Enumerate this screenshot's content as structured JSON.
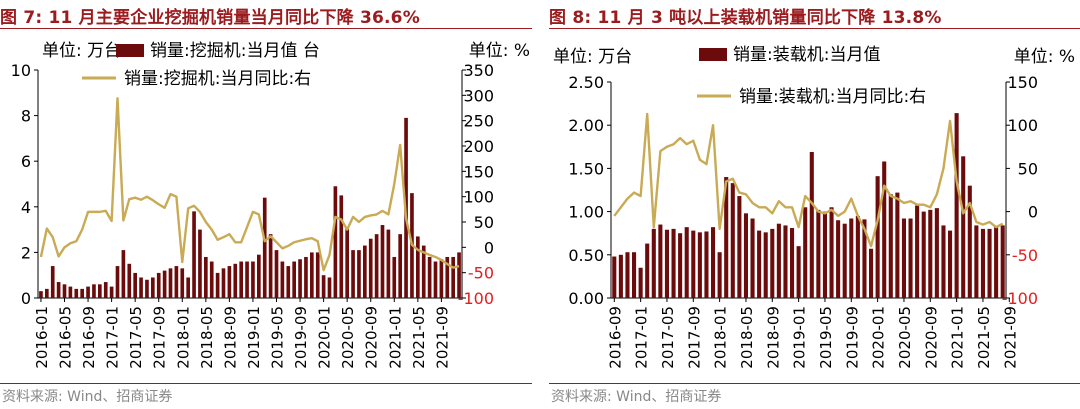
{
  "colors": {
    "title": "#9b1b1e",
    "bar": "#6b0b0b",
    "line": "#c9aa55",
    "right_axis_negative": "#e02020",
    "text": "#000000",
    "source": "#888888"
  },
  "left": {
    "title": "图 7:  11 月主要企业挖掘机销量当月同比下降 36.6%",
    "source": "资料来源:  Wind、招商证券",
    "unit_left": "单位:  万台",
    "unit_right": "单位:  %",
    "legend_bar": "销量:挖掘机:当月值 台",
    "legend_line": "销量:挖掘机:当月同比:右",
    "chart_data": {
      "type": "bar",
      "combo": "bar + line (secondary axis)",
      "x_tick_labels": [
        "2016-01",
        "2016-05",
        "2016-09",
        "2017-01",
        "2017-05",
        "2017-09",
        "2018-01",
        "2018-05",
        "2018-09",
        "2019-01",
        "2019-05",
        "2019-09",
        "2020-01",
        "2020-05",
        "2020-09",
        "2021-01",
        "2021-05",
        "2021-09"
      ],
      "y_left_ticks": [
        "0",
        "2",
        "4",
        "6",
        "8",
        "10"
      ],
      "y_left_range": [
        0,
        10
      ],
      "y_right_ticks": [
        "-100",
        "-50",
        "0",
        "50",
        "100",
        "150",
        "200",
        "250",
        "300",
        "350"
      ],
      "y_right_range": [
        -100,
        350
      ],
      "series": [
        {
          "name": "销量:挖掘机:当月值 台",
          "type": "bar",
          "axis": "left",
          "values": [
            0.3,
            0.4,
            1.4,
            0.7,
            0.6,
            0.5,
            0.4,
            0.4,
            0.5,
            0.6,
            0.6,
            0.7,
            0.5,
            1.4,
            2.1,
            1.5,
            1.1,
            0.9,
            0.8,
            0.9,
            1.1,
            1.2,
            1.3,
            1.4,
            1.3,
            0.9,
            3.8,
            3.0,
            1.8,
            1.6,
            1.1,
            1.3,
            1.4,
            1.5,
            1.6,
            1.6,
            1.6,
            1.9,
            4.4,
            2.8,
            2.1,
            1.6,
            1.4,
            1.6,
            1.7,
            1.8,
            2.0,
            2.0,
            1.0,
            0.9,
            4.9,
            4.5,
            3.1,
            2.1,
            2.1,
            2.3,
            2.6,
            2.8,
            3.2,
            3.0,
            1.8,
            2.8,
            7.9,
            4.6,
            2.7,
            2.3,
            1.8,
            1.6,
            1.7,
            1.8,
            1.8,
            2.0
          ]
        },
        {
          "name": "销量:挖掘机:当月同比:右",
          "type": "line",
          "axis": "right",
          "values": [
            -19,
            37,
            20,
            -18,
            0,
            8,
            12,
            35,
            70,
            70,
            70,
            72,
            52,
            294,
            53,
            95,
            98,
            94,
            100,
            93,
            85,
            78,
            105,
            100,
            -29,
            77,
            82,
            70,
            50,
            35,
            15,
            20,
            26,
            10,
            10,
            40,
            70,
            65,
            12,
            22,
            10,
            -2,
            3,
            10,
            13,
            16,
            18,
            12,
            -45,
            -15,
            60,
            55,
            35,
            60,
            50,
            60,
            63,
            65,
            72,
            65,
            125,
            202,
            57,
            5,
            -5,
            -10,
            -15,
            -19,
            -25,
            -33,
            -40,
            -37
          ]
        }
      ]
    }
  },
  "right": {
    "title": "图 8:  11 月 3 吨以上装载机销量同比下降 13.8%",
    "source": "资料来源:  Wind、招商证券",
    "unit_left": "单位:  万台",
    "unit_right": "单位:  %",
    "legend_bar": "销量:装载机:当月值",
    "legend_line": "销量:装载机:当月同比:右",
    "chart_data": {
      "type": "bar",
      "combo": "bar + line (secondary axis)",
      "x_tick_labels": [
        "2016-09",
        "2017-01",
        "2017-05",
        "2017-09",
        "2018-01",
        "2018-05",
        "2018-09",
        "2019-01",
        "2019-05",
        "2019-09",
        "2020-01",
        "2020-05",
        "2020-09",
        "2021-01",
        "2021-05",
        "2021-09"
      ],
      "y_left_ticks": [
        "0.00",
        "0.50",
        "1.00",
        "1.50",
        "2.00",
        "2.50"
      ],
      "y_left_range": [
        0,
        2.5
      ],
      "y_right_ticks": [
        "-100",
        "-50",
        "0",
        "50",
        "100",
        "150"
      ],
      "y_right_range": [
        -100,
        150
      ],
      "series": [
        {
          "name": "销量:装载机:当月值",
          "type": "bar",
          "axis": "left",
          "values": [
            0.48,
            0.5,
            0.53,
            0.53,
            0.35,
            0.63,
            0.8,
            0.85,
            0.79,
            0.8,
            0.75,
            0.82,
            0.78,
            0.76,
            0.77,
            0.82,
            0.53,
            1.4,
            1.33,
            1.18,
            0.98,
            0.92,
            0.78,
            0.76,
            0.8,
            0.86,
            0.84,
            0.81,
            0.6,
            1.05,
            1.69,
            1.02,
            1.0,
            1.05,
            0.9,
            0.86,
            0.92,
            0.95,
            0.91,
            0.57,
            1.41,
            1.58,
            1.2,
            1.22,
            0.92,
            0.92,
            1.07,
            1.0,
            1.02,
            1.04,
            0.84,
            0.78,
            2.14,
            1.64,
            1.3,
            0.84,
            0.8,
            0.8,
            0.82,
            0.84
          ]
        },
        {
          "name": "销量:装载机:当月同比:右",
          "type": "line",
          "axis": "right",
          "values": [
            -5,
            5,
            15,
            22,
            18,
            113,
            -18,
            70,
            75,
            78,
            85,
            78,
            82,
            60,
            55,
            100,
            -20,
            35,
            38,
            22,
            20,
            10,
            5,
            5,
            -2,
            12,
            5,
            5,
            -18,
            18,
            10,
            0,
            -2,
            2,
            -5,
            0,
            15,
            -5,
            -20,
            -40,
            -10,
            30,
            18,
            15,
            10,
            12,
            8,
            8,
            5,
            20,
            50,
            105,
            35,
            -2,
            10,
            -12,
            -15,
            -12,
            -18,
            -14
          ]
        }
      ]
    }
  }
}
